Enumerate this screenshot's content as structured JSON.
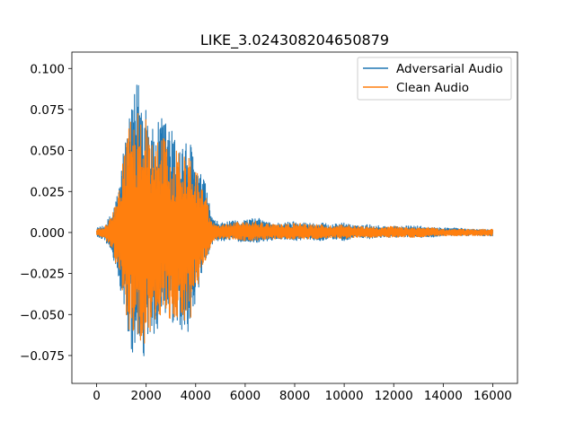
{
  "chart_data": {
    "type": "line",
    "title": "LIKE_3.024308204650879",
    "xlabel": "",
    "ylabel": "",
    "xlim": [
      -1000,
      17000
    ],
    "ylim": [
      -0.092,
      0.11
    ],
    "xticks": [
      0,
      2000,
      4000,
      6000,
      8000,
      10000,
      12000,
      14000,
      16000
    ],
    "xtick_labels": [
      "0",
      "2000",
      "4000",
      "6000",
      "8000",
      "10000",
      "12000",
      "14000",
      "16000"
    ],
    "yticks": [
      -0.075,
      -0.05,
      -0.025,
      0.0,
      0.025,
      0.05,
      0.075,
      0.1
    ],
    "ytick_labels": [
      "−0.075",
      "−0.050",
      "−0.025",
      "0.000",
      "0.025",
      "0.050",
      "0.075",
      "0.100"
    ],
    "grid": false,
    "legend_position": "top-right",
    "x_range": [
      0,
      16000
    ],
    "series": [
      {
        "name": "Adversarial Audio",
        "color": "#1f77b4",
        "envelope_x": [
          0,
          300,
          600,
          900,
          1100,
          1400,
          1700,
          2000,
          2300,
          2600,
          2900,
          3200,
          3500,
          3800,
          4100,
          4400,
          4700,
          5000,
          5500,
          6000,
          6500,
          7000,
          7500,
          8000,
          8500,
          9000,
          9500,
          10000,
          10500,
          11000,
          11500,
          12000,
          12500,
          13000,
          13500,
          14000,
          14500,
          15000,
          15500,
          16000
        ],
        "envelope_upper": [
          0.003,
          0.004,
          0.012,
          0.028,
          0.055,
          0.074,
          0.1,
          0.087,
          0.06,
          0.072,
          0.07,
          0.057,
          0.057,
          0.055,
          0.04,
          0.03,
          0.008,
          0.006,
          0.007,
          0.008,
          0.009,
          0.006,
          0.006,
          0.007,
          0.006,
          0.006,
          0.005,
          0.006,
          0.004,
          0.005,
          0.004,
          0.004,
          0.004,
          0.004,
          0.003,
          0.003,
          0.003,
          0.002,
          0.002,
          0.002
        ],
        "envelope_lower": [
          -0.003,
          -0.004,
          -0.012,
          -0.03,
          -0.05,
          -0.075,
          -0.083,
          -0.078,
          -0.065,
          -0.055,
          -0.06,
          -0.058,
          -0.065,
          -0.058,
          -0.04,
          -0.02,
          -0.006,
          -0.005,
          -0.005,
          -0.006,
          -0.006,
          -0.005,
          -0.004,
          -0.005,
          -0.004,
          -0.005,
          -0.004,
          -0.005,
          -0.003,
          -0.004,
          -0.003,
          -0.003,
          -0.003,
          -0.003,
          -0.003,
          -0.002,
          -0.002,
          -0.002,
          -0.002,
          -0.002
        ]
      },
      {
        "name": "Clean Audio",
        "color": "#ff7f0e",
        "envelope_x": [
          0,
          300,
          600,
          900,
          1100,
          1400,
          1700,
          2000,
          2300,
          2600,
          2900,
          3200,
          3500,
          3800,
          4100,
          4400,
          4700,
          5000,
          5500,
          6000,
          6500,
          7000,
          7500,
          8000,
          8500,
          9000,
          9500,
          10000,
          10500,
          11000,
          11500,
          12000,
          12500,
          13000,
          13500,
          14000,
          14500,
          15000,
          15500,
          16000
        ],
        "envelope_upper": [
          0.002,
          0.003,
          0.01,
          0.024,
          0.05,
          0.07,
          0.076,
          0.075,
          0.05,
          0.065,
          0.05,
          0.05,
          0.05,
          0.05,
          0.035,
          0.025,
          0.006,
          0.005,
          0.006,
          0.007,
          0.007,
          0.005,
          0.005,
          0.006,
          0.005,
          0.005,
          0.004,
          0.005,
          0.004,
          0.004,
          0.003,
          0.004,
          0.003,
          0.003,
          0.003,
          0.002,
          0.002,
          0.002,
          0.002,
          0.002
        ],
        "envelope_lower": [
          -0.002,
          -0.003,
          -0.01,
          -0.026,
          -0.045,
          -0.065,
          -0.07,
          -0.068,
          -0.058,
          -0.05,
          -0.055,
          -0.052,
          -0.058,
          -0.055,
          -0.035,
          -0.018,
          -0.005,
          -0.004,
          -0.004,
          -0.005,
          -0.005,
          -0.004,
          -0.004,
          -0.004,
          -0.004,
          -0.004,
          -0.003,
          -0.004,
          -0.003,
          -0.003,
          -0.003,
          -0.003,
          -0.003,
          -0.003,
          -0.002,
          -0.002,
          -0.002,
          -0.002,
          -0.002,
          -0.002
        ]
      }
    ]
  }
}
